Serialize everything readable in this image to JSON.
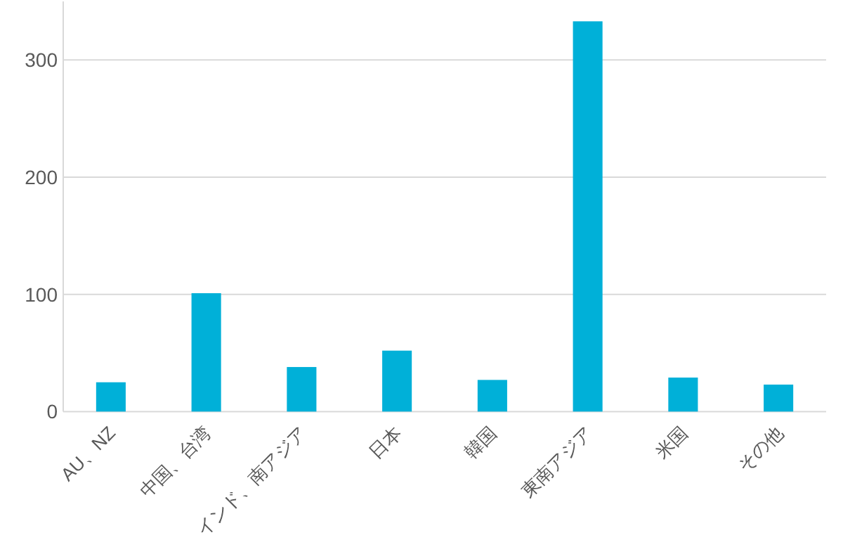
{
  "chart_data": {
    "type": "bar",
    "categories": [
      "AU、NZ",
      "中国、台湾",
      "インド、南アジア",
      "日本",
      "韓国",
      "東南アジア",
      "米国",
      "その他"
    ],
    "values": [
      25,
      101,
      38,
      52,
      27,
      333,
      29,
      23
    ],
    "color": "#00b0d8",
    "ylim": [
      0,
      350
    ],
    "yticks": [
      0,
      100,
      200,
      300
    ],
    "grid": "y"
  }
}
